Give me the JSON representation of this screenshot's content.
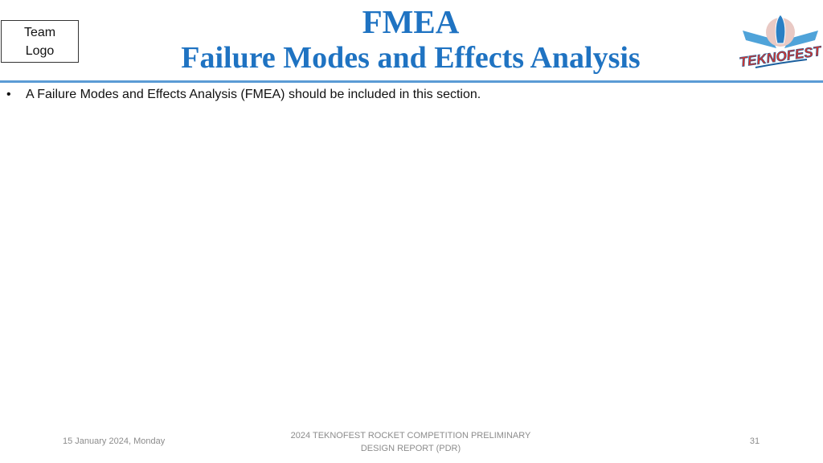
{
  "header": {
    "team_logo": "Team Logo",
    "title": "FMEA",
    "subtitle": "Failure Modes and Effects Analysis",
    "brand_logo": "TEKNOFEST"
  },
  "body": {
    "bullets": [
      "A Failure Modes and Effects Analysis (FMEA) should be included in this section."
    ]
  },
  "footer": {
    "date": "15 January 2024, Monday",
    "center": "2024 TEKNOFEST ROCKET COMPETITION PRELIMINARY DESIGN REPORT (PDR)",
    "page": "31"
  }
}
